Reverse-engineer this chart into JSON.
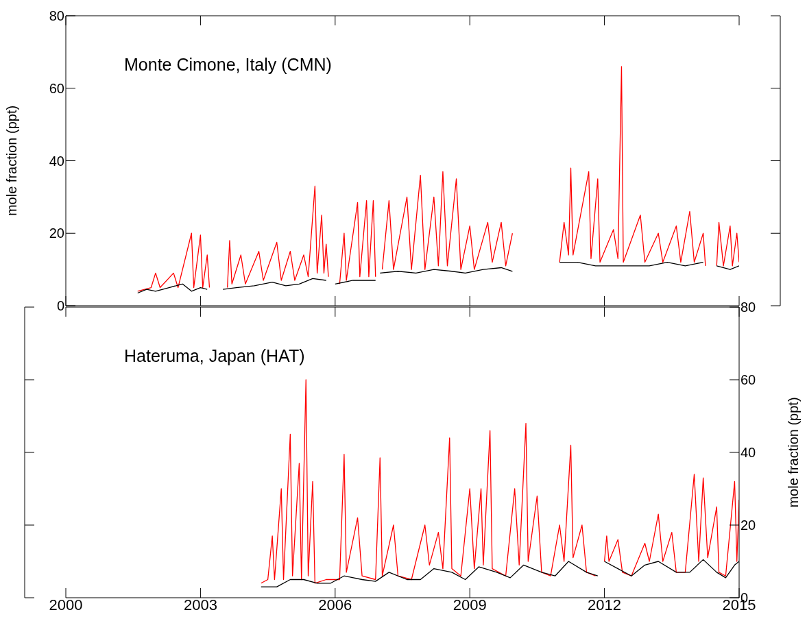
{
  "chart_data": [
    {
      "type": "line",
      "title": "Monte Cimone, Italy (CMN)",
      "ylabel": "mole fraction (ppt)",
      "xlim": [
        2000,
        2015
      ],
      "xticks": [
        2000,
        2003,
        2006,
        2009,
        2012,
        2015
      ],
      "ylim": [
        0,
        80
      ],
      "yticks": [
        0,
        20,
        40,
        60,
        80
      ],
      "tick_labels": "y",
      "series": [
        {
          "color": "#ff0000",
          "x": [
            2001.6,
            2001.9,
            2002.0,
            2002.1,
            2002.4,
            2002.5,
            2002.8,
            2002.85,
            2003.0,
            2003.05,
            2003.15,
            2003.2,
            2003.3,
            2003.6,
            2003.65,
            2003.7,
            2003.9,
            2004.0,
            2004.3,
            2004.4,
            2004.7,
            2004.8,
            2005.0,
            2005.1,
            2005.3,
            2005.4,
            2005.55,
            2005.6,
            2005.7,
            2005.75,
            2005.8,
            2005.85,
            2005.95,
            2006.1,
            2006.2,
            2006.25,
            2006.5,
            2006.55,
            2006.7,
            2006.75,
            2006.85,
            2006.9,
            2006.95,
            2007.05,
            2007.2,
            2007.3,
            2007.6,
            2007.7,
            2007.9,
            2008.0,
            2008.2,
            2008.3,
            2008.4,
            2008.5,
            2008.7,
            2008.8,
            2009.0,
            2009.1,
            2009.4,
            2009.5,
            2009.7,
            2009.8,
            2009.95,
            2010.2,
            2011.0,
            2011.1,
            2011.2,
            2011.25,
            2011.3,
            2011.65,
            2011.7,
            2011.85,
            2011.9,
            2012.2,
            2012.3,
            2012.38,
            2012.42,
            2012.8,
            2012.9,
            2013.2,
            2013.3,
            2013.6,
            2013.7,
            2013.9,
            2014.0,
            2014.2,
            2014.25,
            2014.35,
            2014.5,
            2014.55,
            2014.65,
            2014.8,
            2014.85,
            2014.95,
            2015.0
          ],
          "values": [
            4,
            5,
            9,
            5,
            9,
            5,
            20,
            5,
            19.5,
            5,
            14,
            5,
            null,
            5,
            18,
            6,
            14,
            6,
            15,
            7,
            17.5,
            7,
            15,
            7,
            14,
            8,
            33,
            9,
            25,
            9,
            17,
            8,
            null,
            6,
            20,
            7,
            28.5,
            8,
            29,
            8,
            29,
            8,
            null,
            10,
            29,
            10,
            30,
            10,
            36,
            10,
            30,
            11,
            37,
            11,
            35,
            10,
            22,
            10,
            23,
            12,
            23,
            11,
            20,
            null,
            12,
            23,
            14,
            38,
            14,
            37,
            13,
            35,
            12,
            21,
            13,
            66,
            12,
            25,
            12,
            20,
            12,
            22,
            12,
            26,
            12,
            20,
            11,
            null,
            11,
            23,
            11,
            22,
            11,
            20,
            12
          ]
        },
        {
          "color": "#000000",
          "x": [
            2001.6,
            2001.8,
            2002.0,
            2002.3,
            2002.6,
            2002.8,
            2003.0,
            2003.15,
            2003.3,
            2003.5,
            2003.8,
            2004.2,
            2004.6,
            2004.9,
            2005.2,
            2005.5,
            2005.8,
            2005.95,
            2006.0,
            2006.4,
            2006.9,
            2006.95,
            2007.0,
            2007.4,
            2007.8,
            2008.2,
            2008.6,
            2008.9,
            2009.3,
            2009.7,
            2009.95,
            2010.2,
            2011.0,
            2011.4,
            2011.8,
            2012.2,
            2012.6,
            2013.0,
            2013.4,
            2013.8,
            2014.2,
            2014.35,
            2014.5,
            2014.8,
            2015.0
          ],
          "values": [
            3.5,
            4.5,
            4,
            5,
            6,
            4,
            5,
            4.5,
            null,
            4.5,
            5,
            5.5,
            6.5,
            5.5,
            6,
            7.5,
            7,
            null,
            6,
            7,
            7,
            null,
            9,
            9.5,
            9,
            10,
            9.5,
            9,
            10,
            10.5,
            9.5,
            null,
            12,
            12,
            11,
            11,
            11,
            11,
            12,
            11,
            12,
            null,
            11,
            10,
            11
          ]
        }
      ]
    },
    {
      "type": "line",
      "title": "Hateruma, Japan (HAT)",
      "y2label": "mole fraction (ppt)",
      "xlim": [
        2000,
        2015
      ],
      "xticks": [
        2000,
        2003,
        2006,
        2009,
        2012,
        2015
      ],
      "y2lim": [
        0,
        80
      ],
      "y2ticks": [
        0,
        20,
        40,
        60,
        80
      ],
      "series": [
        {
          "color": "#ff0000",
          "axis": "y2",
          "x": [
            2004.35,
            2004.5,
            2004.6,
            2004.65,
            2004.8,
            2004.85,
            2005.0,
            2005.05,
            2005.2,
            2005.25,
            2005.35,
            2005.4,
            2005.5,
            2005.55,
            2005.8,
            2006.1,
            2006.2,
            2006.25,
            2006.5,
            2006.6,
            2006.9,
            2007.0,
            2007.05,
            2007.3,
            2007.4,
            2007.7,
            2008.0,
            2008.1,
            2008.3,
            2008.4,
            2008.55,
            2008.6,
            2008.8,
            2009.0,
            2009.1,
            2009.25,
            2009.3,
            2009.45,
            2009.5,
            2009.8,
            2010.0,
            2010.1,
            2010.25,
            2010.3,
            2010.5,
            2010.6,
            2010.8,
            2011.0,
            2011.1,
            2011.25,
            2011.3,
            2011.5,
            2011.6,
            2011.8,
            2011.9,
            2012.0,
            2012.05,
            2012.1,
            2012.3,
            2012.4,
            2012.6,
            2012.9,
            2013.0,
            2013.2,
            2013.3,
            2013.5,
            2013.6,
            2013.8,
            2014.0,
            2014.1,
            2014.2,
            2014.3,
            2014.5,
            2014.55,
            2014.7,
            2014.9,
            2014.95,
            2015.0
          ],
          "values": [
            4,
            5,
            17,
            5,
            30,
            5,
            45,
            6,
            37,
            5,
            60,
            6,
            32,
            4,
            5,
            5,
            39.5,
            7,
            22,
            6,
            5,
            38.5,
            6,
            20,
            6,
            5,
            20,
            9,
            18,
            8,
            44,
            8,
            6,
            30,
            8,
            30,
            9,
            46,
            8,
            6,
            30,
            9,
            48,
            10,
            28,
            7,
            6,
            20,
            10,
            42,
            11,
            20,
            7,
            6,
            null,
            10,
            17,
            10,
            16,
            7,
            6,
            15,
            10,
            23,
            10,
            18,
            7,
            7,
            34,
            10,
            33,
            11,
            25,
            7,
            6,
            32,
            10,
            27
          ]
        },
        {
          "color": "#000000",
          "axis": "y2",
          "x": [
            2004.35,
            2004.7,
            2005.0,
            2005.3,
            2005.6,
            2005.9,
            2006.2,
            2006.6,
            2006.9,
            2007.2,
            2007.6,
            2007.9,
            2008.2,
            2008.6,
            2008.9,
            2009.2,
            2009.6,
            2009.9,
            2010.2,
            2010.6,
            2010.9,
            2011.2,
            2011.6,
            2011.85,
            2011.9,
            2012.0,
            2012.3,
            2012.6,
            2012.9,
            2013.2,
            2013.6,
            2013.9,
            2014.2,
            2014.5,
            2014.7,
            2014.9,
            2015.0
          ],
          "values": [
            3,
            3,
            5,
            5,
            4,
            4,
            6,
            5,
            4.5,
            7,
            5,
            5,
            8,
            7,
            5,
            8.5,
            7,
            5.5,
            9,
            7,
            6,
            10,
            7,
            6,
            null,
            10,
            8,
            6,
            9,
            10,
            7,
            7,
            10.5,
            7,
            5.5,
            9,
            10
          ]
        }
      ]
    }
  ]
}
